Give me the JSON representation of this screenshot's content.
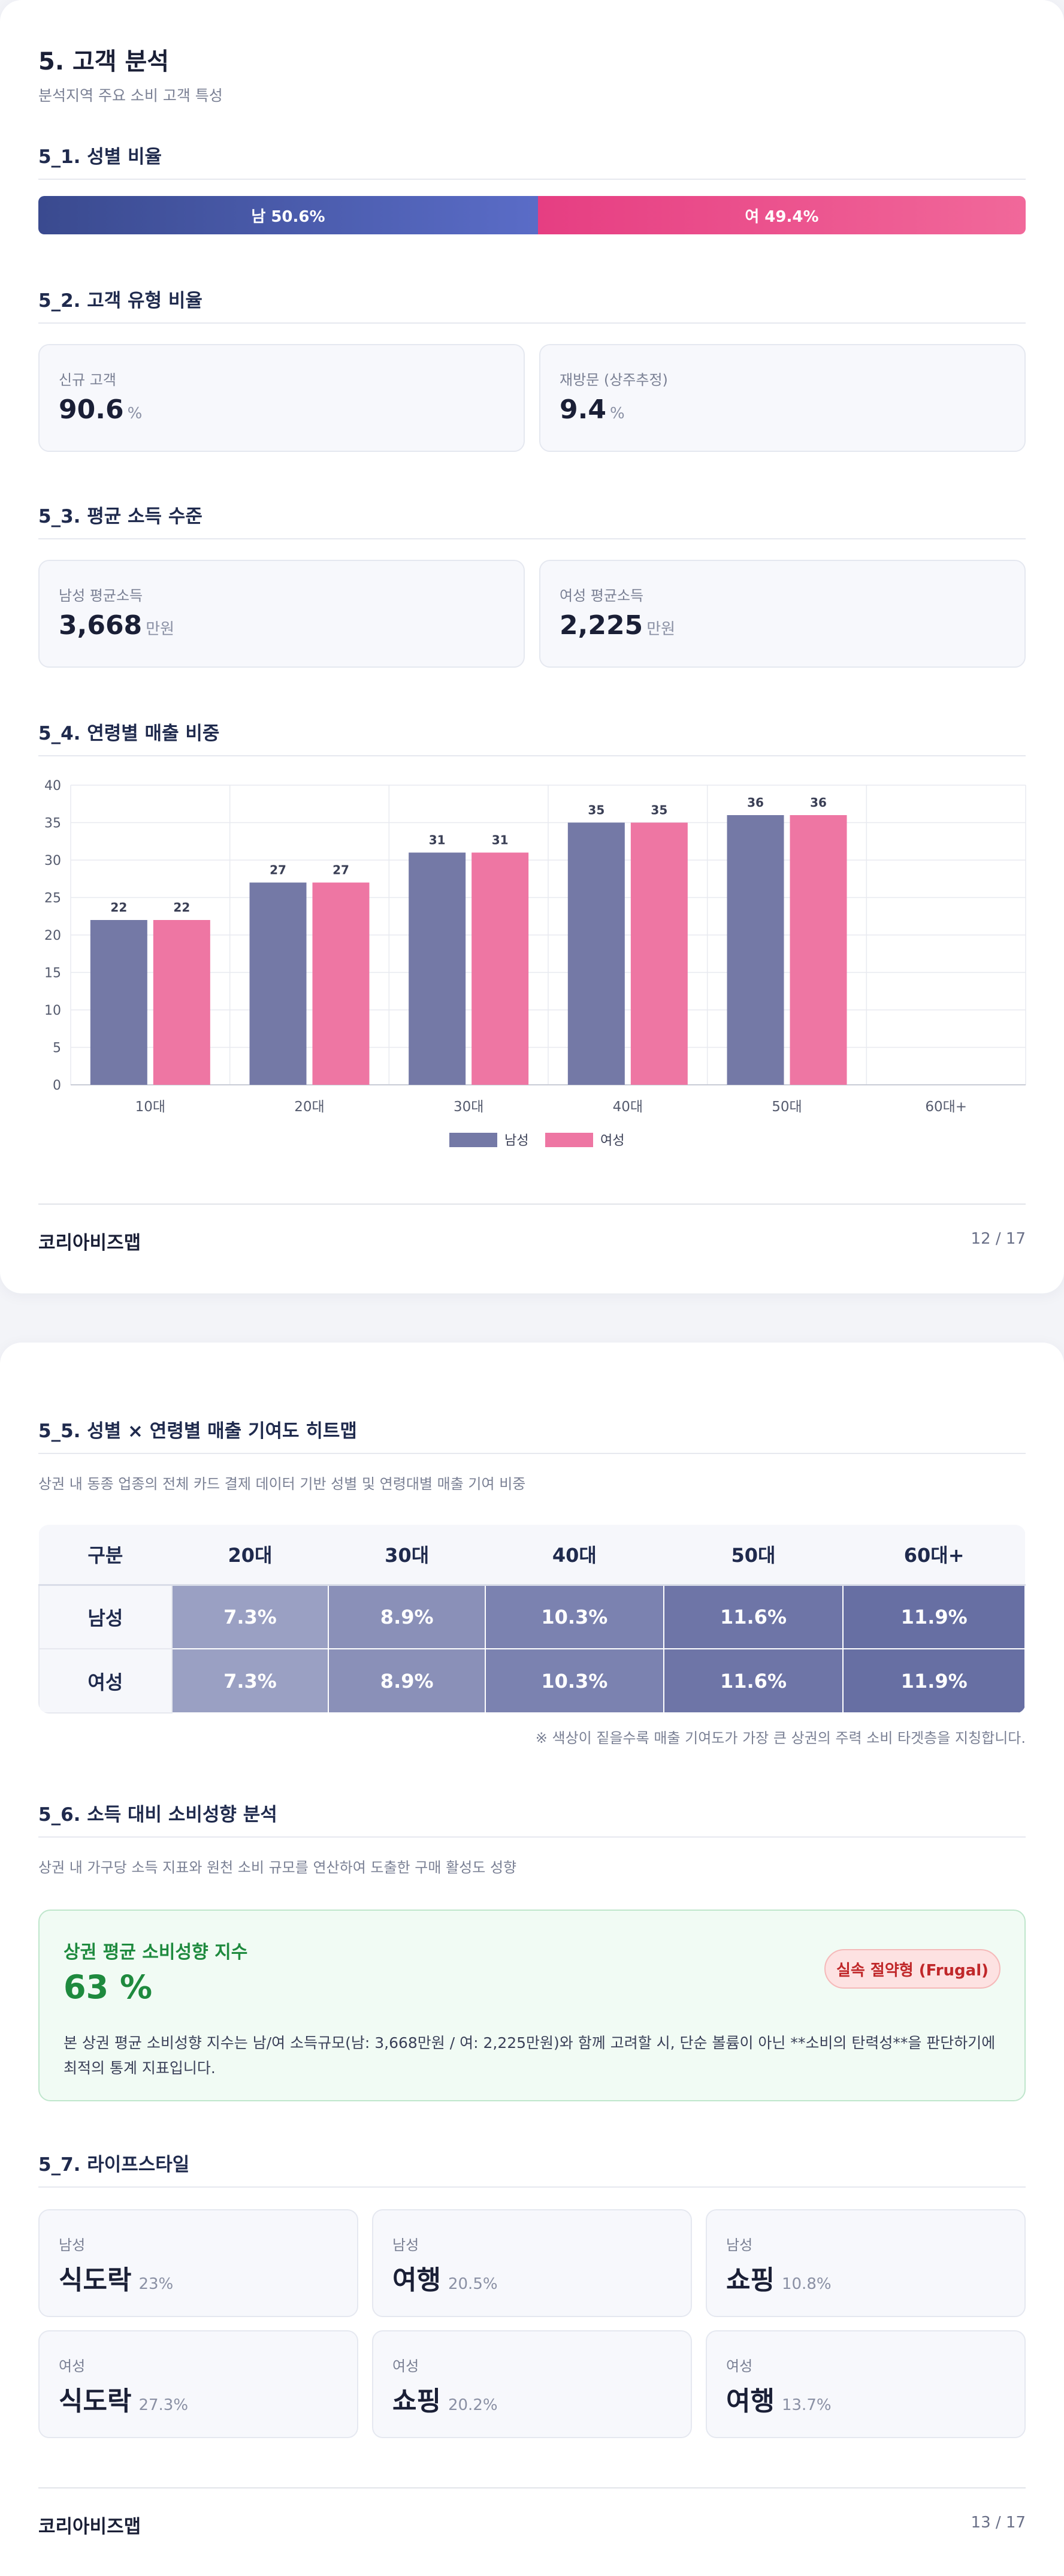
{
  "page1": {
    "title": "5. 고객 분석",
    "subtitle": "분석지역 주요 소비 고객 특성",
    "gender": {
      "section_title": "5_1. 성별 비율",
      "male_label": "남 50.6%",
      "female_label": "여 49.4%",
      "male_pct": 50.6,
      "female_pct": 49.4,
      "male_color": "#3a4a8f",
      "female_color": "#e63e82"
    },
    "customer_type": {
      "section_title": "5_2. 고객 유형 비율",
      "cards": [
        {
          "label": "신규 고객",
          "value": "90.6",
          "unit": "%"
        },
        {
          "label": "재방문 (상주추정)",
          "value": "9.4",
          "unit": "%"
        }
      ]
    },
    "income": {
      "section_title": "5_3. 평균 소득 수준",
      "cards": [
        {
          "label": "남성 평균소득",
          "value": "3,668",
          "unit": "만원"
        },
        {
          "label": "여성 평균소득",
          "value": "2,225",
          "unit": "만원"
        }
      ]
    },
    "age_sales": {
      "section_title": "5_4. 연령별 매출 비중"
    },
    "footer": {
      "brand": "코리아비즈맵",
      "page": "12 / 17"
    }
  },
  "chart_data": {
    "type": "bar",
    "title": "",
    "xlabel": "",
    "ylabel": "",
    "categories": [
      "10대",
      "20대",
      "30대",
      "40대",
      "50대",
      "60대+"
    ],
    "series": [
      {
        "name": "남성",
        "color": "#7479a6",
        "values": [
          22,
          27,
          31,
          35,
          36,
          null
        ]
      },
      {
        "name": "여성",
        "color": "#ee76a3",
        "values": [
          22,
          27,
          31,
          35,
          36,
          null
        ]
      }
    ],
    "ylim": [
      0,
      40
    ],
    "yticks": [
      0,
      5,
      10,
      15,
      20,
      25,
      30,
      35,
      40
    ],
    "grid": true,
    "legend": "bottom-center",
    "data_labels": true
  },
  "page2": {
    "heatmap": {
      "section_title": "5_5. 성별 × 연령별 매출 기여도 히트맵",
      "description": "상권 내 동종 업종의 전체 카드 결제 데이터 기반 성별 및 연령대별 매출 기여 비중",
      "header": [
        "구분",
        "20대",
        "30대",
        "40대",
        "50대",
        "60대+"
      ],
      "rows": [
        {
          "label": "남성",
          "cells": [
            "7.3%",
            "8.9%",
            "10.3%",
            "11.6%",
            "11.9%"
          ]
        },
        {
          "label": "여성",
          "cells": [
            "7.3%",
            "8.9%",
            "10.3%",
            "11.6%",
            "11.9%"
          ]
        }
      ],
      "cell_colors": [
        "#9aa0c3",
        "#8a90b8",
        "#7b82b0",
        "#6e75a7",
        "#676fa3"
      ],
      "note": "※ 색상이 짙을수록 매출 기여도가 가장 큰 상권의 주력 소비 타겟층을 지칭합니다."
    },
    "spending": {
      "section_title": "5_6. 소득 대비 소비성향 분석",
      "description": "상권 내 가구당 소득 지표와 원천 소비 규모를 연산하여 도출한 구매 활성도 성향",
      "box_title": "상권 평균 소비성향 지수",
      "value": "63 %",
      "badge": "실속 절약형 (Frugal)",
      "text": "본 상권 평균 소비성향 지수는 남/여 소득규모(남: 3,668만원 / 여: 2,225만원)와 함께 고려할 시, 단순 볼륨이 아닌 **소비의 탄력성**을 판단하기에 최적의 통계 지표입니다."
    },
    "lifestyle": {
      "section_title": "5_7. 라이프스타일",
      "cards": [
        {
          "gender": "남성",
          "name": "식도락",
          "pct": "23%"
        },
        {
          "gender": "남성",
          "name": "여행",
          "pct": "20.5%"
        },
        {
          "gender": "남성",
          "name": "쇼핑",
          "pct": "10.8%"
        },
        {
          "gender": "여성",
          "name": "식도락",
          "pct": "27.3%"
        },
        {
          "gender": "여성",
          "name": "쇼핑",
          "pct": "20.2%"
        },
        {
          "gender": "여성",
          "name": "여행",
          "pct": "13.7%"
        }
      ]
    },
    "footer": {
      "brand": "코리아비즈맵",
      "page": "13 / 17"
    }
  }
}
